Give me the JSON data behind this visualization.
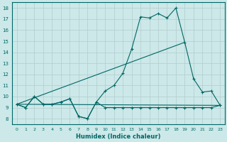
{
  "xlabel": "Humidex (Indice chaleur)",
  "xlim": [
    -0.5,
    23.5
  ],
  "ylim": [
    7.5,
    18.5
  ],
  "yticks": [
    8,
    9,
    10,
    11,
    12,
    13,
    14,
    15,
    16,
    17,
    18
  ],
  "xticks": [
    0,
    1,
    2,
    3,
    4,
    5,
    6,
    7,
    8,
    9,
    10,
    11,
    12,
    13,
    14,
    15,
    16,
    17,
    18,
    19,
    20,
    21,
    22,
    23
  ],
  "background_color": "#cce8e8",
  "grid_color": "#b0cccc",
  "line_color": "#006666",
  "main_x": [
    0,
    1,
    2,
    3,
    4,
    5,
    6,
    7,
    8,
    9,
    10,
    11,
    12,
    13,
    14,
    15,
    16,
    17,
    18,
    19,
    20,
    21,
    22,
    23
  ],
  "main_y": [
    9.3,
    9.0,
    10.0,
    9.3,
    9.3,
    9.5,
    9.8,
    8.2,
    8.0,
    9.5,
    10.5,
    11.0,
    12.1,
    14.3,
    17.2,
    17.1,
    17.5,
    17.1,
    18.0,
    14.9,
    11.6,
    10.4,
    10.5,
    9.2
  ],
  "min_x": [
    0,
    1,
    2,
    3,
    4,
    5,
    6,
    7,
    8,
    9,
    10,
    11,
    12,
    13,
    14,
    15,
    16,
    17,
    18,
    19,
    20,
    21,
    22,
    23
  ],
  "min_y": [
    9.3,
    9.0,
    10.0,
    9.3,
    9.3,
    9.5,
    9.8,
    8.2,
    8.0,
    9.5,
    9.0,
    9.0,
    9.0,
    9.0,
    9.0,
    9.0,
    9.0,
    9.0,
    9.0,
    9.0,
    9.0,
    9.0,
    9.0,
    9.2
  ],
  "trend1_x": [
    0,
    23
  ],
  "trend1_y": [
    9.3,
    9.2
  ],
  "trend2_x": [
    0,
    19
  ],
  "trend2_y": [
    9.3,
    14.9
  ]
}
